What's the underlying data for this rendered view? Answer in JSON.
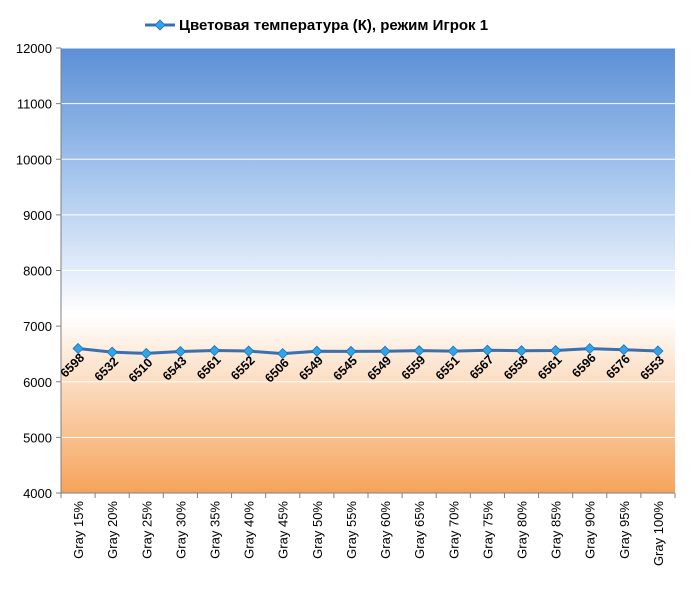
{
  "chart_data": {
    "type": "line",
    "title": "",
    "xlabel": "",
    "ylabel": "",
    "ylim": [
      4000,
      12000
    ],
    "yticks": [
      4000,
      5000,
      6000,
      7000,
      8000,
      9000,
      10000,
      11000,
      12000
    ],
    "grid": true,
    "legend_position": "top",
    "categories": [
      "Gray 15%",
      "Gray 20%",
      "Gray 25%",
      "Gray 30%",
      "Gray 35%",
      "Gray 40%",
      "Gray 45%",
      "Gray 50%",
      "Gray 55%",
      "Gray 60%",
      "Gray 65%",
      "Gray 70%",
      "Gray 75%",
      "Gray 80%",
      "Gray 85%",
      "Gray 90%",
      "Gray 95%",
      "Gray 100%"
    ],
    "series": [
      {
        "name": "Цветовая температура (К), режим Игрок 1",
        "color": "#3a6fb0",
        "marker_color": "#2fa4e7",
        "values": [
          6598,
          6532,
          6510,
          6543,
          6561,
          6552,
          6506,
          6549,
          6545,
          6549,
          6559,
          6551,
          6567,
          6558,
          6561,
          6596,
          6576,
          6553
        ]
      }
    ],
    "background_gradient": [
      "#5b8fd6",
      "#a9c8ee",
      "#ffffff",
      "#f6a35a"
    ]
  }
}
